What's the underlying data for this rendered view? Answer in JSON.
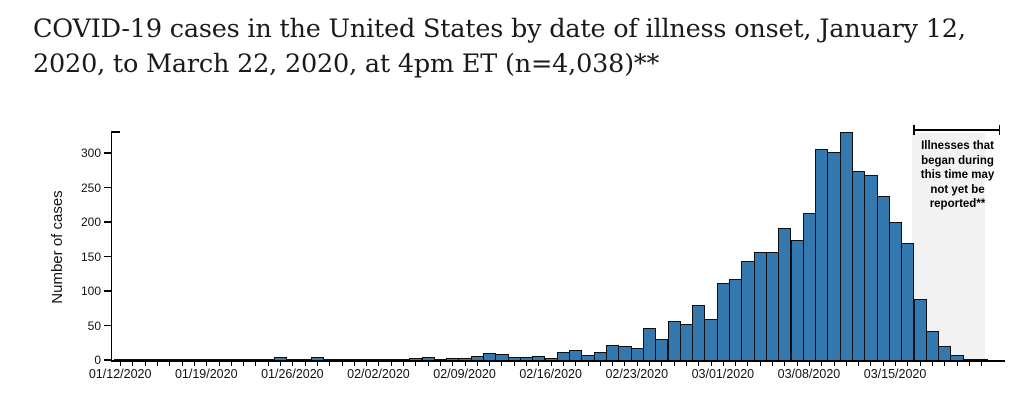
{
  "header": {
    "title_line1": "COVID-19 cases in the United States by date of illness onset, January 12,",
    "title_line2": "2020, to March 22, 2020, at 4pm ET (n=4,038)**"
  },
  "chart_data": {
    "type": "bar",
    "title": "COVID-19 cases in the United States by date of illness onset, January 12, 2020, to March 22, 2020, at 4pm ET (n=4,038)**",
    "n_total": 4038,
    "xlabel": "",
    "ylabel": "Number of cases",
    "ylim": [
      0,
      330
    ],
    "yticks": [
      0,
      50,
      100,
      150,
      200,
      250,
      300
    ],
    "grid": false,
    "dates": [
      "01/12/2020",
      "01/13/2020",
      "01/14/2020",
      "01/15/2020",
      "01/16/2020",
      "01/17/2020",
      "01/18/2020",
      "01/19/2020",
      "01/20/2020",
      "01/21/2020",
      "01/22/2020",
      "01/23/2020",
      "01/24/2020",
      "01/25/2020",
      "01/26/2020",
      "01/27/2020",
      "01/28/2020",
      "01/29/2020",
      "01/30/2020",
      "01/31/2020",
      "02/01/2020",
      "02/02/2020",
      "02/03/2020",
      "02/04/2020",
      "02/05/2020",
      "02/06/2020",
      "02/07/2020",
      "02/08/2020",
      "02/09/2020",
      "02/10/2020",
      "02/11/2020",
      "02/12/2020",
      "02/13/2020",
      "02/14/2020",
      "02/15/2020",
      "02/16/2020",
      "02/17/2020",
      "02/18/2020",
      "02/19/2020",
      "02/20/2020",
      "02/21/2020",
      "02/22/2020",
      "02/23/2020",
      "02/24/2020",
      "02/25/2020",
      "02/26/2020",
      "02/27/2020",
      "02/28/2020",
      "02/29/2020",
      "03/01/2020",
      "03/02/2020",
      "03/03/2020",
      "03/04/2020",
      "03/05/2020",
      "03/06/2020",
      "03/07/2020",
      "03/08/2020",
      "03/09/2020",
      "03/10/2020",
      "03/11/2020",
      "03/12/2020",
      "03/13/2020",
      "03/14/2020",
      "03/15/2020",
      "03/16/2020",
      "03/17/2020",
      "03/18/2020",
      "03/19/2020",
      "03/20/2020",
      "03/21/2020",
      "03/22/2020"
    ],
    "values": [
      1,
      1,
      2,
      1,
      2,
      1,
      1,
      1,
      2,
      2,
      2,
      1,
      2,
      4,
      2,
      1,
      4,
      2,
      2,
      1,
      2,
      2,
      1,
      1,
      3,
      4,
      2,
      3,
      3,
      6,
      10,
      8,
      4,
      5,
      6,
      3,
      11,
      14,
      7,
      12,
      22,
      20,
      18,
      47,
      30,
      57,
      52,
      79,
      60,
      112,
      117,
      143,
      156,
      156,
      191,
      174,
      213,
      306,
      302,
      330,
      274,
      268,
      238,
      200,
      170,
      89,
      42,
      20,
      7,
      2,
      1
    ],
    "xticks": [
      {
        "index": 0,
        "label": "01/12/2020"
      },
      {
        "index": 7,
        "label": "01/19/2020"
      },
      {
        "index": 14,
        "label": "01/26/2020"
      },
      {
        "index": 21,
        "label": "02/02/2020"
      },
      {
        "index": 28,
        "label": "02/09/2020"
      },
      {
        "index": 35,
        "label": "02/16/2020"
      },
      {
        "index": 42,
        "label": "02/23/2020"
      },
      {
        "index": 49,
        "label": "03/01/2020"
      },
      {
        "index": 56,
        "label": "03/08/2020"
      },
      {
        "index": 63,
        "label": "03/15/2020"
      }
    ],
    "bar_color": "#3478b0",
    "bar_border_color": "#0e0e0e",
    "annotation": {
      "text": "Illnesses that began during this time may not yet be reported**",
      "region_color": "#f2f2f2",
      "region_start_index": 64.9,
      "region_end_index": 70.8
    }
  }
}
